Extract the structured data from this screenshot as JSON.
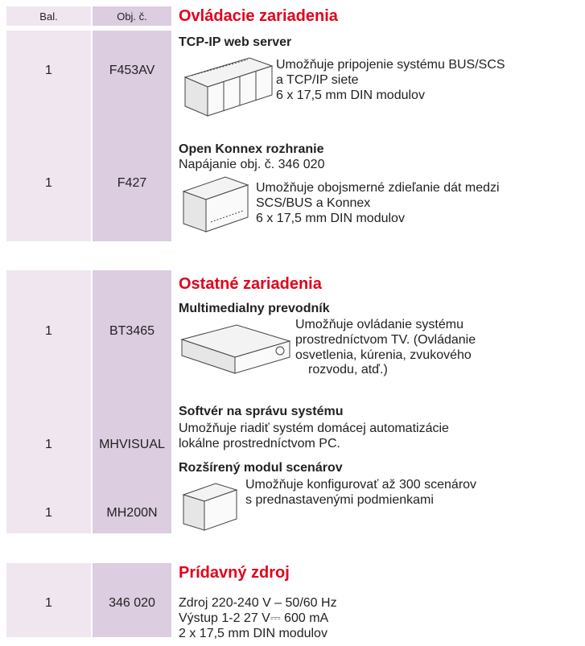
{
  "header": {
    "qty": "Bal.",
    "code": "Obj. č."
  },
  "sections": [
    {
      "title": "Ovládacie zariadenia",
      "items": [
        {
          "qty": "1",
          "code": "F453AV",
          "name": "TCP-IP web server",
          "description": [
            "Umožňuje pripojenie systému BUS/SCS",
            "a TCP/IP siete",
            "6 x 17,5 mm DIN modulov"
          ]
        },
        {
          "qty": "1",
          "code": "F427",
          "name": "Open Konnex rozhranie",
          "note": "Napájanie obj. č. 346 020",
          "description": [
            "Umožňuje obojsmerné zdieľanie dát medzi",
            "SCS/BUS a Konnex",
            "6 x 17,5 mm DIN modulov"
          ]
        }
      ]
    },
    {
      "title": "Ostatné zariadenia",
      "items": [
        {
          "qty": "1",
          "code": "BT3465",
          "name": "Multimedialny prevodník",
          "description": [
            "Umožňuje ovládanie systému",
            "prostredníctvom TV. (Ovládanie",
            "osvetlenia, kúrenia, zvukového",
            "rozvodu, atď.)"
          ]
        },
        {
          "qty": "1",
          "code": "MHVISUAL",
          "name": "Softvér na správu systému",
          "description": [
            "Umožňuje riadiť systém domácej automatizácie",
            "lokálne prostredníctvom PC."
          ]
        },
        {
          "qty": "1",
          "code": "MH200N",
          "name": "Rozšírený modul scenárov",
          "description": [
            "Umožňuje konfigurovať až 300 scenárov",
            "s prednastavenými podmienkami"
          ]
        }
      ]
    },
    {
      "title": "Prídavný zdroj",
      "items": [
        {
          "qty": "1",
          "code": "346 020",
          "description": [
            "Zdroj 220-240 V – 50/60 Hz",
            "Výstup 1-2 27 V⎓ 600 mA",
            "2 x 17,5 mm DIN modulov"
          ]
        }
      ]
    }
  ]
}
